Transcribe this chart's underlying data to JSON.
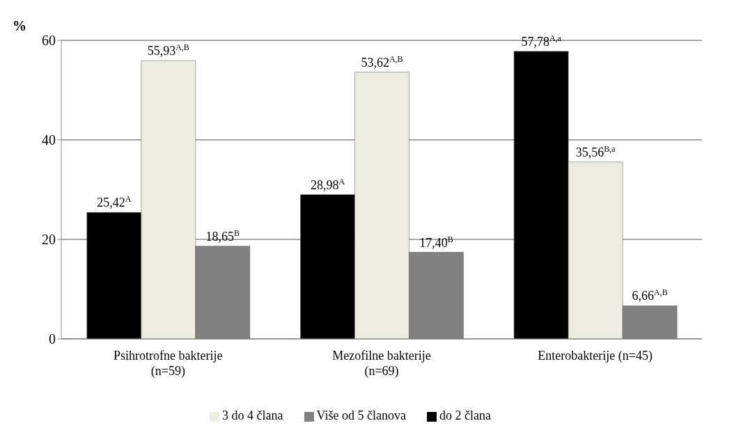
{
  "chart_data": {
    "type": "bar",
    "ylabel": "%",
    "categories": [
      "Psihrotrofne bakterije (n=59)",
      "Mezofilne bakterije (n=69)",
      "Enterobakterije (n=45)"
    ],
    "series": [
      {
        "name": "do 2 člana",
        "color": "#000000",
        "values": [
          25.42,
          28.98,
          57.78
        ],
        "value_labels": [
          "25,42$^{A}$",
          "28,98$^{A}$",
          "57,78$^{A,a}$"
        ]
      },
      {
        "name": "3 do 4 člana",
        "color": "#eeece1",
        "values": [
          55.93,
          53.62,
          35.56
        ],
        "value_labels": [
          "55,93$^{A,B}$",
          "53,62$^{A,B}$",
          "35,56$^{B,a}$"
        ]
      },
      {
        "name": "Više od 5 članova",
        "color": "#808080",
        "values": [
          18.65,
          17.4,
          6.66
        ],
        "value_labels": [
          "18,65$^{B}$",
          "17,40$^{B}$",
          "6,66$^{A,B}$"
        ]
      }
    ],
    "ylim": [
      0,
      60
    ],
    "yticks": [
      0,
      20,
      40,
      60
    ],
    "grid": "y",
    "legend": "bottom"
  }
}
